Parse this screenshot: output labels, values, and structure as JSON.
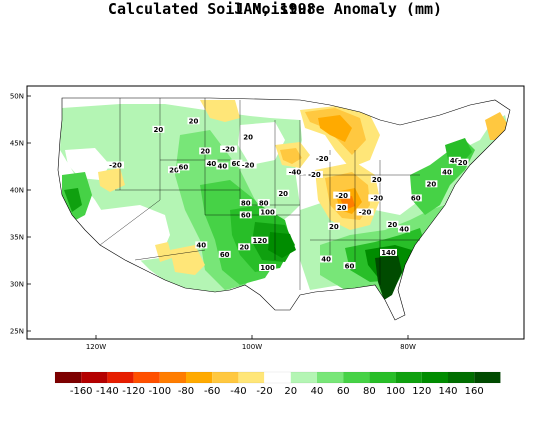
{
  "title": "Calculated Soil Moisture Anomaly (mm)",
  "subtitle": "JAN, 1998",
  "lat_ticks": [
    "50N",
    "45N",
    "40N",
    "35N",
    "30N",
    "25N"
  ],
  "lon_ticks": [
    "120W",
    "100W",
    "80W"
  ],
  "legend": {
    "colors": [
      "#7d0000",
      "#b40000",
      "#e61e00",
      "#ff5000",
      "#ff7d00",
      "#ffaa00",
      "#ffc840",
      "#ffe678",
      "#ffffff",
      "#b4f5b4",
      "#78e678",
      "#46d246",
      "#28be28",
      "#0fa00f",
      "#008c00",
      "#006e00",
      "#004b00"
    ],
    "labels": [
      "-160",
      "-140",
      "-120",
      "-100",
      "-80",
      "-60",
      "-40",
      "-20",
      "20",
      "40",
      "60",
      "80",
      "100",
      "120",
      "140",
      "160"
    ]
  },
  "contour_labels": [
    {
      "text": "20",
      "lon": -112.0,
      "lat": 46.3
    },
    {
      "text": "20",
      "lon": -107.5,
      "lat": 47.2
    },
    {
      "text": "20",
      "lon": -100.5,
      "lat": 45.5
    },
    {
      "text": "20",
      "lon": -106.0,
      "lat": 44.0
    },
    {
      "text": "20",
      "lon": -110.0,
      "lat": 42.0
    },
    {
      "text": "-20",
      "lon": -117.5,
      "lat": 42.5
    },
    {
      "text": "60",
      "lon": -108.8,
      "lat": 42.3
    },
    {
      "text": "40",
      "lon": -105.2,
      "lat": 42.7
    },
    {
      "text": "40",
      "lon": -103.8,
      "lat": 42.4
    },
    {
      "text": "-20",
      "lon": -103.0,
      "lat": 44.2
    },
    {
      "text": "60",
      "lon": -102.0,
      "lat": 42.7
    },
    {
      "text": "-20",
      "lon": -100.5,
      "lat": 42.5
    },
    {
      "text": "-20",
      "lon": -91.0,
      "lat": 43.2
    },
    {
      "text": "-40",
      "lon": -94.5,
      "lat": 41.8
    },
    {
      "text": "-20",
      "lon": -92.0,
      "lat": 41.5
    },
    {
      "text": "20",
      "lon": -96.0,
      "lat": 39.5
    },
    {
      "text": "80",
      "lon": -100.8,
      "lat": 38.5
    },
    {
      "text": "80",
      "lon": -98.5,
      "lat": 38.5
    },
    {
      "text": "60",
      "lon": -100.8,
      "lat": 37.2
    },
    {
      "text": "100",
      "lon": -98.0,
      "lat": 37.5
    },
    {
      "text": "120",
      "lon": -99.0,
      "lat": 34.5
    },
    {
      "text": "40",
      "lon": -106.5,
      "lat": 34.0
    },
    {
      "text": "60",
      "lon": -103.5,
      "lat": 33.0
    },
    {
      "text": "20",
      "lon": -101.0,
      "lat": 33.8
    },
    {
      "text": "100",
      "lon": -98.0,
      "lat": 31.6
    },
    {
      "text": "40",
      "lon": -90.5,
      "lat": 32.5
    },
    {
      "text": "60",
      "lon": -87.5,
      "lat": 31.8
    },
    {
      "text": "20",
      "lon": -89.5,
      "lat": 36.0
    },
    {
      "text": "20",
      "lon": -88.5,
      "lat": 38.0
    },
    {
      "text": "-20",
      "lon": -88.5,
      "lat": 39.3
    },
    {
      "text": "-20",
      "lon": -85.5,
      "lat": 37.5
    },
    {
      "text": "-20",
      "lon": -84.0,
      "lat": 39.0
    },
    {
      "text": "20",
      "lon": -84.0,
      "lat": 41.0
    },
    {
      "text": "60",
      "lon": -79.0,
      "lat": 39.0
    },
    {
      "text": "40",
      "lon": -80.5,
      "lat": 35.7
    },
    {
      "text": "20",
      "lon": -82.0,
      "lat": 36.2
    },
    {
      "text": "140",
      "lon": -82.5,
      "lat": 33.2
    },
    {
      "text": "20",
      "lon": -77.0,
      "lat": 40.5
    },
    {
      "text": "40",
      "lon": -75.0,
      "lat": 41.8
    },
    {
      "text": "40",
      "lon": -74.0,
      "lat": 43.0
    },
    {
      "text": "20",
      "lon": -73.0,
      "lat": 42.8
    }
  ]
}
